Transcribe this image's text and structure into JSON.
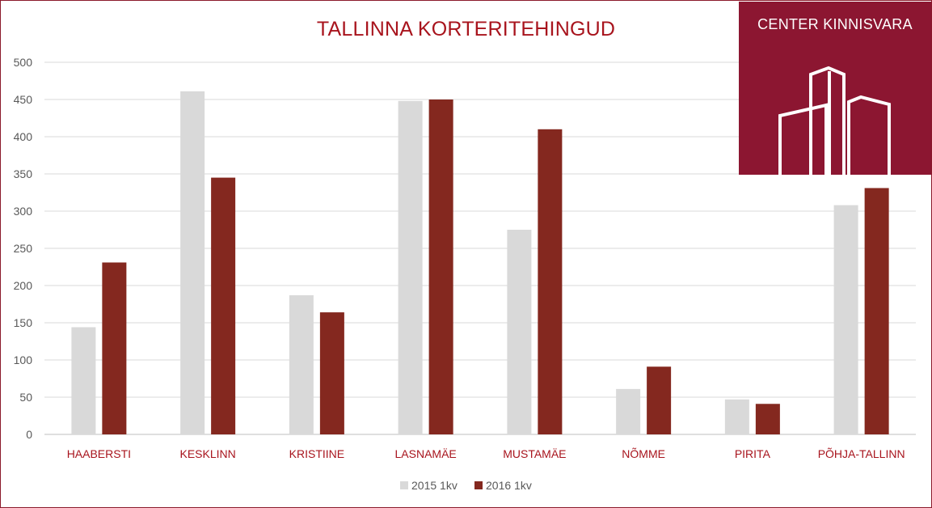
{
  "chart_data": {
    "type": "bar",
    "title": "TALLINNA KORTERITEHINGUD",
    "categories": [
      "HAABERSTI",
      "KESKLINN",
      "KRISTIINE",
      "LASNAMÄE",
      "MUSTAMÄE",
      "NÕMME",
      "PIRITA",
      "PÕHJA-TALLINN"
    ],
    "series": [
      {
        "name": "2015 1kv",
        "color": "#d9d9d9",
        "values": [
          144,
          461,
          187,
          448,
          275,
          61,
          47,
          308
        ]
      },
      {
        "name": "2016 1kv",
        "color": "#84281f",
        "values": [
          231,
          345,
          164,
          450,
          410,
          91,
          41,
          331
        ]
      }
    ],
    "ylim": [
      0,
      500
    ],
    "yticks": [
      "0",
      "50",
      "100",
      "150",
      "200",
      "250",
      "300",
      "350",
      "400",
      "450",
      "500"
    ],
    "xlabel": "",
    "ylabel": "",
    "grid": true,
    "legend": "bottom",
    "category_label_color": "#a8141d"
  },
  "logo": {
    "text": "CENTER KINNISVARA",
    "icon": "buildings-icon"
  }
}
